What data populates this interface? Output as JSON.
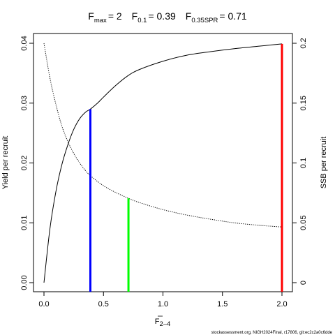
{
  "chart_data": {
    "type": "line",
    "title": {
      "fmax_label": "F",
      "fmax_sub": "max",
      "fmax_value": "= 2",
      "f01_label": "F",
      "f01_sub": "0.1",
      "f01_value": "= 0.39",
      "fspr_label": "F",
      "fspr_sub": "0.35SPR",
      "fspr_value": "= 0.71"
    },
    "xlabel": "F",
    "xlabel_sub": "2–4",
    "ylabel_left": "Yield per recruit",
    "ylabel_right": "SSB per recruit",
    "xlim": [
      0,
      2
    ],
    "ylim_left": [
      0,
      0.04
    ],
    "ylim_right": [
      0,
      0.2
    ],
    "x_ticks": [
      {
        "value": 0,
        "label": "0.0"
      },
      {
        "value": 0.5,
        "label": "0.5"
      },
      {
        "value": 1,
        "label": "1.0"
      },
      {
        "value": 1.5,
        "label": "1.5"
      },
      {
        "value": 2,
        "label": "2.0"
      }
    ],
    "y_left_ticks": [
      {
        "value": 0,
        "label": "0.00"
      },
      {
        "value": 0.01,
        "label": "0.01"
      },
      {
        "value": 0.02,
        "label": "0.02"
      },
      {
        "value": 0.03,
        "label": "0.03"
      },
      {
        "value": 0.04,
        "label": "0.04"
      }
    ],
    "y_right_ticks": [
      {
        "value": 0,
        "label": "0"
      },
      {
        "value": 0.05,
        "label": "0.05"
      },
      {
        "value": 0.1,
        "label": "0.1"
      },
      {
        "value": 0.15,
        "label": "0.15"
      },
      {
        "value": 0.2,
        "label": "0.2"
      }
    ],
    "series": [
      {
        "style": "solid",
        "axis": "left",
        "color": "#000000",
        "x": [
          0,
          0.05,
          0.1,
          0.15,
          0.2,
          0.25,
          0.3,
          0.35,
          0.39,
          0.45,
          0.5,
          0.6,
          0.7,
          0.8,
          1.0,
          1.2,
          1.4,
          1.6,
          1.8,
          2.0
        ],
        "y": [
          0,
          0.009,
          0.0152,
          0.0197,
          0.023,
          0.0256,
          0.0274,
          0.0285,
          0.029,
          0.03,
          0.031,
          0.0329,
          0.0345,
          0.0356,
          0.037,
          0.038,
          0.0386,
          0.0391,
          0.0395,
          0.0399
        ]
      },
      {
        "style": "dotted",
        "axis": "right",
        "color": "#000000",
        "x": [
          0,
          0.05,
          0.1,
          0.15,
          0.2,
          0.25,
          0.3,
          0.35,
          0.4,
          0.5,
          0.6,
          0.71,
          0.8,
          1.0,
          1.2,
          1.4,
          1.6,
          1.8,
          2.0
        ],
        "y": [
          0.2,
          0.171,
          0.149,
          0.131,
          0.118,
          0.108,
          0.1,
          0.0935,
          0.0885,
          0.081,
          0.0755,
          0.0705,
          0.067,
          0.061,
          0.0565,
          0.053,
          0.05,
          0.048,
          0.0465
        ]
      }
    ],
    "reference_lines": [
      {
        "x": 0.39,
        "y_left": 0.029,
        "color": "#0000ff"
      },
      {
        "x": 0.71,
        "y_left": 0.0141,
        "color": "#00ff00"
      },
      {
        "x": 2.0,
        "y_left": 0.0399,
        "color": "#ff0000"
      }
    ],
    "footer": "stockassessment.org, NIGH2024Final, r17806, git:ec2c2a0c6dde"
  }
}
